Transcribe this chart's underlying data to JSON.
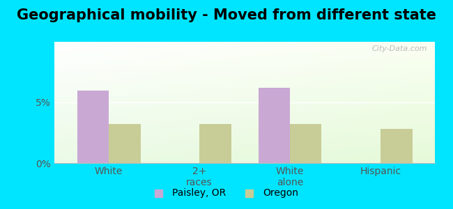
{
  "title": "Geographical mobility - Moved from different state",
  "categories": [
    "White",
    "2+\nraces",
    "White\nalone",
    "Hispanic"
  ],
  "paisley_values": [
    6.0,
    0,
    6.2,
    0
  ],
  "oregon_values": [
    3.2,
    3.2,
    3.2,
    2.8
  ],
  "paisley_color": "#c9a8d4",
  "oregon_color": "#c8cc96",
  "ylim": [
    0,
    10
  ],
  "bar_width": 0.35,
  "background_outer": "#00e5ff",
  "watermark": "City-Data.com",
  "legend_labels": [
    "Paisley, OR",
    "Oregon"
  ],
  "title_fontsize": 15,
  "tick_fontsize": 10,
  "legend_fontsize": 10
}
